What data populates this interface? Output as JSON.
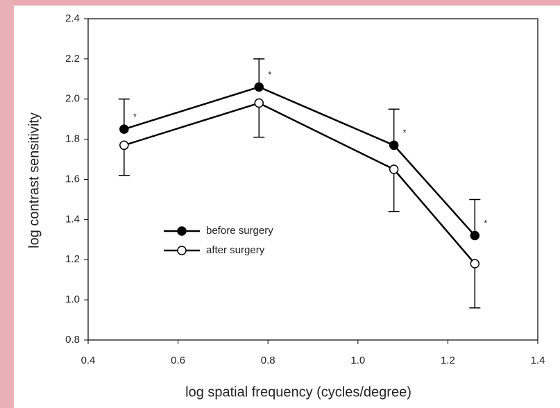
{
  "chart_data": {
    "type": "line",
    "xlabel": "log spatial frequency (cycles/degree)",
    "ylabel": "log contrast sensitivity",
    "x": [
      0.48,
      0.78,
      1.08,
      1.26
    ],
    "series": [
      {
        "name": "before surgery",
        "color": "#000000",
        "fill": "#000000",
        "values": [
          1.85,
          2.06,
          1.77,
          1.32
        ],
        "errors": [
          0.15,
          0.14,
          0.18,
          0.18
        ],
        "error_direction": "up"
      },
      {
        "name": "after surgery",
        "color": "#000000",
        "fill": "#ffffff",
        "values": [
          1.77,
          1.98,
          1.65,
          1.18
        ],
        "errors": [
          0.15,
          0.17,
          0.21,
          0.22
        ],
        "error_direction": "down"
      }
    ],
    "annotations": [
      "*",
      "*",
      "*",
      "*"
    ],
    "xlim": [
      0.4,
      1.4
    ],
    "xticks": [
      0.4,
      0.6,
      0.8,
      {
        "value": 1.0,
        "label": "1.0"
      },
      1.2,
      1.4
    ],
    "ylim": [
      0.8,
      2.4
    ],
    "yticks": [
      0.8,
      {
        "value": 1.0,
        "label": "1.0"
      },
      1.2,
      1.4,
      1.6,
      1.8,
      {
        "value": 2.0,
        "label": "2.0"
      },
      2.2,
      2.4
    ],
    "grid": false
  }
}
